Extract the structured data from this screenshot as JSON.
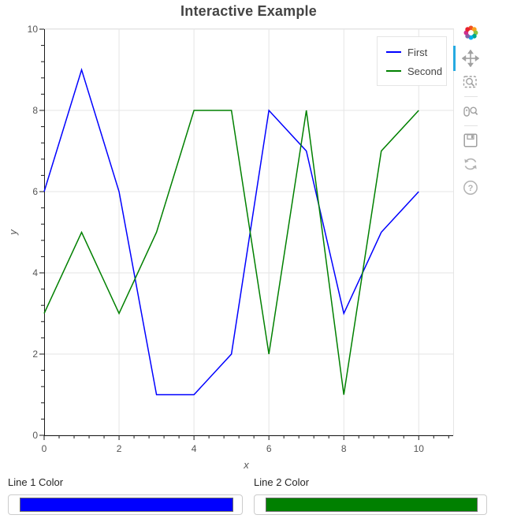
{
  "title": "Interactive Example",
  "chart_data": {
    "type": "line",
    "title": "Interactive Example",
    "xlabel": "x",
    "ylabel": "y",
    "x": [
      0,
      1,
      2,
      3,
      4,
      5,
      6,
      7,
      8,
      9,
      10
    ],
    "series": [
      {
        "name": "First",
        "color": "#0000ff",
        "values": [
          6,
          9,
          6,
          1,
          1,
          2,
          8,
          7,
          3,
          5,
          6
        ]
      },
      {
        "name": "Second",
        "color": "#008000",
        "values": [
          3,
          5,
          3,
          5,
          8,
          8,
          2,
          8,
          1,
          7,
          8
        ]
      }
    ],
    "xlim": [
      0,
      10.92
    ],
    "ylim": [
      0,
      10
    ],
    "x_ticks": [
      0,
      2,
      4,
      6,
      8,
      10
    ],
    "y_ticks": [
      0,
      2,
      4,
      6,
      8,
      10
    ],
    "minor_tick_step": 0.4,
    "grid": true,
    "legend_position": "top_right"
  },
  "toolbar": {
    "logo_icon": "bokeh-logo",
    "help_glyph": "?",
    "tools": [
      {
        "name": "pan",
        "icon": "pan-icon",
        "active": true
      },
      {
        "name": "box-zoom",
        "icon": "box-zoom-icon",
        "active": false
      },
      {
        "name": "wheel-zoom",
        "icon": "wheel-zoom-icon",
        "active": false
      },
      {
        "name": "save",
        "icon": "save-icon",
        "active": false
      },
      {
        "name": "reset",
        "icon": "reset-icon",
        "active": false
      },
      {
        "name": "help",
        "icon": "help-icon",
        "active": false
      }
    ]
  },
  "controls": [
    {
      "label": "Line 1 Color",
      "value": "#0000ff"
    },
    {
      "label": "Line 2 Color",
      "value": "#008000"
    }
  ],
  "colors": {
    "active_tool": "#26aae1",
    "grid": "#e5e5e5",
    "frame_outline": "#e5e5e5",
    "axis": "#1a1a1a",
    "tick_label": "#555555",
    "title": "#444444",
    "icon": "#a0a0a0"
  }
}
